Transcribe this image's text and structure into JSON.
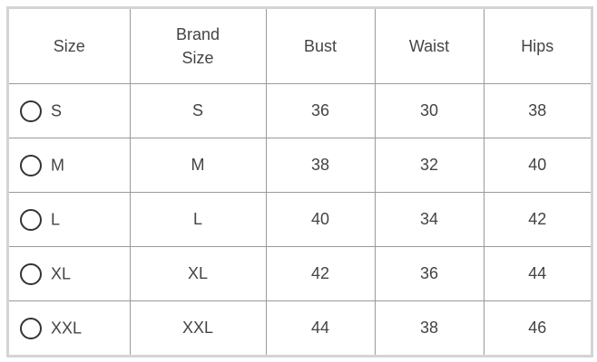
{
  "headers": [
    "Size",
    "Brand Size",
    "Bust",
    "Waist",
    "Hips"
  ],
  "brand_size_header_lines": [
    "Brand",
    "Size"
  ],
  "rows": [
    {
      "size": "S",
      "brand": "S",
      "bust": "36",
      "waist": "30",
      "hips": "38"
    },
    {
      "size": "M",
      "brand": "M",
      "bust": "38",
      "waist": "32",
      "hips": "40"
    },
    {
      "size": "L",
      "brand": "L",
      "bust": "40",
      "waist": "34",
      "hips": "42"
    },
    {
      "size": "XL",
      "brand": "XL",
      "bust": "42",
      "waist": "36",
      "hips": "44"
    },
    {
      "size": "XXL",
      "brand": "XXL",
      "bust": "44",
      "waist": "38",
      "hips": "46"
    }
  ]
}
